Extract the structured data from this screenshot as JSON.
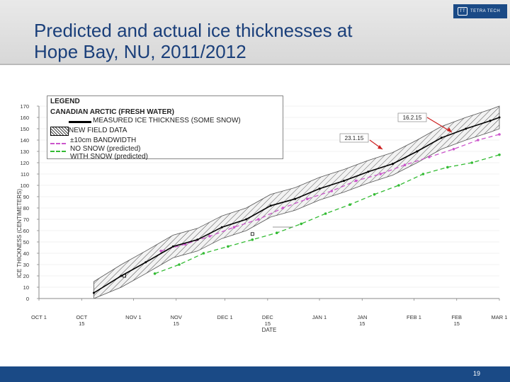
{
  "header": {
    "title_line1": "Predicted and actual ice thicknesses at",
    "title_line2": "Hope Bay, NU, 2011/2012"
  },
  "logo": {
    "text": "TETRA TECH",
    "mark": "TT"
  },
  "footer": {
    "page_number": "19"
  },
  "legend": {
    "title": "LEGEND",
    "subtitle": "CANADIAN ARCTIC (FRESH WATER)",
    "items": [
      "MEASURED ICE THICKNESS (SOME SNOW)",
      "NEW FIELD DATA",
      "±10cm BANDWIDTH",
      "NO SNOW (predicted)",
      "WITH SNOW (predicted)"
    ]
  },
  "annotations": {
    "callout1": "16.2.15",
    "callout2": "23.1.15"
  },
  "colors": {
    "title": "#1a3f7a",
    "measured": "#000000",
    "no_snow": "#cc55cc",
    "with_snow": "#33bb33",
    "band": "#555555",
    "callout_arrow": "#cc1f1f"
  },
  "chart_data": {
    "type": "line",
    "title": "Predicted and actual ice thicknesses at Hope Bay, NU, 2011/2012",
    "xlabel": "DATE",
    "ylabel": "ICE THICKNESS (CENTIMETERS)",
    "ylim": [
      0,
      170
    ],
    "y_ticks": [
      0,
      10,
      20,
      30,
      40,
      50,
      60,
      70,
      80,
      90,
      100,
      110,
      120,
      130,
      140,
      150,
      160,
      170
    ],
    "x_ticks": [
      "OCT 1",
      "OCT 15",
      "NOV 1",
      "NOV 15",
      "DEC 1",
      "DEC 15",
      "JAN 1",
      "JAN 15",
      "FEB 1",
      "FEB 15",
      "MAR 1"
    ],
    "x_range_days": [
      0,
      151
    ],
    "x_tick_days": [
      0,
      14,
      31,
      45,
      61,
      75,
      92,
      106,
      123,
      137,
      151
    ],
    "bandwidth_cm": 10,
    "series": [
      {
        "name": "MEASURED ICE THICKNESS (SOME SNOW)",
        "x_days": [
          18,
          27,
          35,
          44,
          52,
          60,
          68,
          76,
          84,
          92,
          100,
          108,
          116,
          124,
          132,
          140,
          148,
          151
        ],
        "values": [
          5,
          20,
          32,
          46,
          52,
          63,
          70,
          82,
          88,
          97,
          104,
          112,
          119,
          130,
          142,
          150,
          157,
          160
        ]
      },
      {
        "name": "NO SNOW (predicted)",
        "x_days": [
          40,
          48,
          56,
          64,
          72,
          80,
          88,
          96,
          104,
          112,
          120,
          128,
          136,
          144,
          151
        ],
        "values": [
          42,
          48,
          55,
          63,
          70,
          80,
          88,
          95,
          104,
          110,
          118,
          125,
          132,
          140,
          145
        ]
      },
      {
        "name": "WITH SNOW (predicted)",
        "x_days": [
          38,
          46,
          54,
          62,
          70,
          78,
          86,
          94,
          102,
          110,
          118,
          126,
          134,
          142,
          151
        ],
        "values": [
          22,
          30,
          40,
          46,
          52,
          58,
          66,
          75,
          83,
          92,
          100,
          110,
          116,
          120,
          127
        ]
      },
      {
        "name": "NEW FIELD DATA",
        "x_days": [
          28,
          70
        ],
        "values": [
          20,
          57
        ]
      }
    ]
  }
}
